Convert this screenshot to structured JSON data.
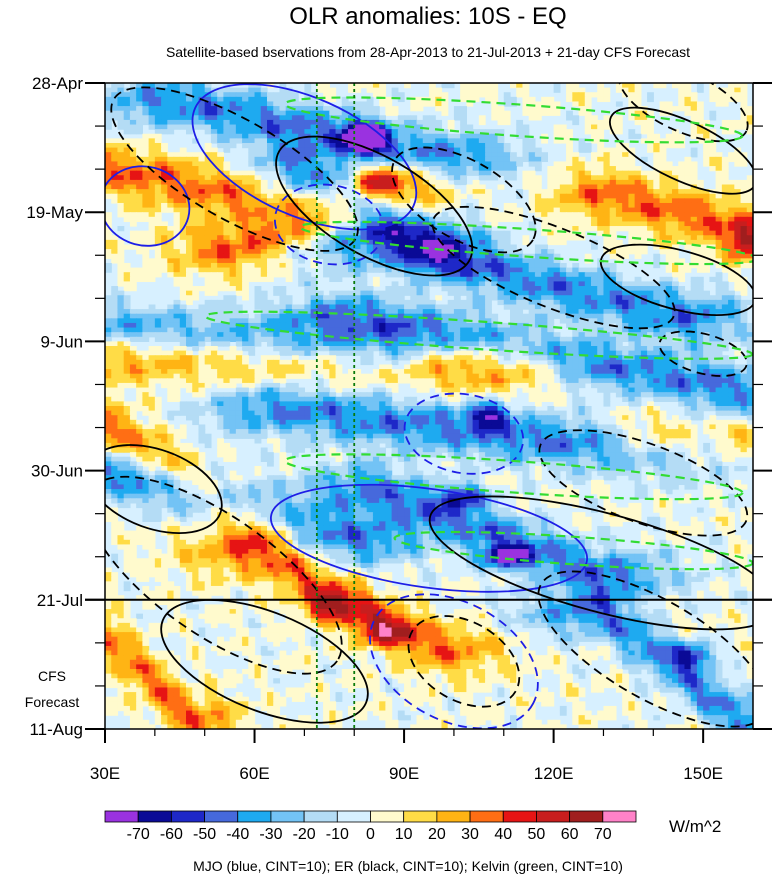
{
  "chart_data": {
    "type": "heatmap",
    "title": "OLR anomalies: 10S - EQ",
    "subtitle": "Satellite-based bservations from 28-Apr-2013 to 21-Jul-2013 + 21-day CFS Forecast",
    "y_tick_labels": [
      "28-Apr",
      "19-May",
      "9-Jun",
      "30-Jun",
      "21-Jul",
      "11-Aug"
    ],
    "y_tick_day_offsets": [
      0,
      21,
      42,
      63,
      84,
      105
    ],
    "ylim_days": [
      0,
      105
    ],
    "x_tick_labels": [
      "30E",
      "60E",
      "90E",
      "120E",
      "150E"
    ],
    "x_tick_values": [
      30,
      60,
      90,
      120,
      150
    ],
    "xlim": [
      30,
      160
    ],
    "forecast_start_day": 84,
    "forecast_label_line1": "CFS",
    "forecast_label_line2": "Forecast",
    "reference_longitudes": [
      72.5,
      80
    ],
    "colorbar": {
      "levels": [
        -70,
        -60,
        -50,
        -40,
        -30,
        -20,
        -10,
        0,
        10,
        20,
        30,
        40,
        50,
        60,
        70
      ],
      "level_labels": [
        "-70",
        "-60",
        "-50",
        "-40",
        "-30",
        "-20",
        "-10",
        "0",
        "10",
        "20",
        "30",
        "40",
        "50",
        "60",
        "70"
      ],
      "colors": [
        "#9a32e0",
        "#0a0a96",
        "#1e28c8",
        "#4669dc",
        "#1eaaf0",
        "#73c3f5",
        "#b4dcf5",
        "#d7f0ff",
        "#fffacd",
        "#ffdc46",
        "#ffb414",
        "#ff6e14",
        "#e61414",
        "#c81e1e",
        "#a01e1e",
        "#ff82c8"
      ],
      "units": "W/m^2"
    },
    "bands": [
      {
        "sign": "neg",
        "lon0": 44,
        "lon1": 98,
        "d0": 3,
        "d1": 12,
        "s": 16
      },
      {
        "sign": "neg",
        "lon0": 70,
        "lon1": 95,
        "d0": 14,
        "d1": 26,
        "s": 11
      },
      {
        "sign": "neg",
        "lon0": 84,
        "lon1": 146,
        "d0": 26,
        "d1": 38,
        "s": 14
      },
      {
        "sign": "neg",
        "lon0": 30,
        "lon1": 86,
        "d0": 40,
        "d1": 44,
        "s": 9
      },
      {
        "sign": "neg",
        "lon0": 80,
        "lon1": 158,
        "d0": 38,
        "d1": 50,
        "s": 15
      },
      {
        "sign": "neg",
        "lon0": 66,
        "lon1": 160,
        "d0": 53,
        "d1": 62,
        "s": 16
      },
      {
        "sign": "neg",
        "lon0": 36,
        "lon1": 80,
        "d0": 64,
        "d1": 74,
        "s": 15
      },
      {
        "sign": "neg",
        "lon0": 85,
        "lon1": 130,
        "d0": 66,
        "d1": 80,
        "s": 15
      },
      {
        "sign": "neg",
        "lon0": 130,
        "lon1": 160,
        "d0": 86,
        "d1": 105,
        "s": 17
      },
      {
        "sign": "pos",
        "lon0": 30,
        "lon1": 56,
        "d0": 14,
        "d1": 18,
        "s": 11
      },
      {
        "sign": "pos",
        "lon0": 56,
        "lon1": 88,
        "d0": 27,
        "d1": 17,
        "s": 13
      },
      {
        "sign": "pos",
        "lon0": 30,
        "lon1": 112,
        "d0": 44,
        "d1": 46,
        "s": 10
      },
      {
        "sign": "pos",
        "lon0": 30,
        "lon1": 60,
        "d0": 55,
        "d1": 72,
        "s": 10
      },
      {
        "sign": "pos",
        "lon0": 60,
        "lon1": 96,
        "d0": 76,
        "d1": 92,
        "s": 14
      },
      {
        "sign": "pos",
        "lon0": 130,
        "lon1": 160,
        "d0": 18,
        "d1": 24,
        "s": 10
      },
      {
        "sign": "pos",
        "lon0": 140,
        "lon1": 160,
        "d0": 58,
        "d1": 62,
        "s": 9
      },
      {
        "sign": "pos",
        "lon0": 30,
        "lon1": 48,
        "d0": 90,
        "d1": 104,
        "s": 9
      }
    ],
    "blobs": [
      {
        "lon": 82,
        "day": 9,
        "rlon": 4,
        "rday": 2.5,
        "v": -90
      },
      {
        "lon": 84,
        "day": 16,
        "rlon": 5,
        "rday": 2.5,
        "v": 40
      },
      {
        "lon": 107,
        "day": 54,
        "rlon": 4,
        "rday": 2,
        "v": -50
      },
      {
        "lon": 102,
        "day": 67,
        "rlon": 4,
        "rday": 2,
        "v": -50
      },
      {
        "lon": 110,
        "day": 77,
        "rlon": 5,
        "rday": 2,
        "v": -55
      },
      {
        "lon": 75,
        "day": 85,
        "rlon": 5,
        "rday": 2.5,
        "v": 45
      },
      {
        "lon": 86,
        "day": 89,
        "rlon": 6,
        "rday": 2.5,
        "v": 40
      },
      {
        "lon": 148,
        "day": 93,
        "rlon": 4,
        "rday": 2,
        "v": -50
      },
      {
        "lon": 158,
        "day": 26,
        "rlon": 3,
        "rday": 3,
        "v": 40
      },
      {
        "lon": 158,
        "day": 57,
        "rlon": 3,
        "rday": 2,
        "v": 35
      }
    ],
    "overlays": [
      {
        "wave": "MJO",
        "color": "#1e1ee6",
        "sign": "neg",
        "lon": 70,
        "day": 12,
        "a": 24,
        "b": 6,
        "rot": 24
      },
      {
        "wave": "MJO",
        "color": "#1e1ee6",
        "sign": "neg",
        "lon": 38,
        "day": 20,
        "a": 9,
        "b": 4,
        "rot": 15
      },
      {
        "wave": "MJO",
        "color": "#1e1ee6",
        "sign": "pos",
        "lon": 75,
        "day": 23,
        "a": 11,
        "b": 4,
        "rot": 10
      },
      {
        "wave": "MJO",
        "color": "#1e1ee6",
        "sign": "pos",
        "lon": 102,
        "day": 57,
        "a": 12,
        "b": 4,
        "rot": 10
      },
      {
        "wave": "MJO",
        "color": "#1e1ee6",
        "sign": "neg",
        "lon": 95,
        "day": 74,
        "a": 32,
        "b": 5,
        "rot": 8
      },
      {
        "wave": "MJO",
        "color": "#1e1ee6",
        "sign": "pos",
        "lon": 100,
        "day": 94,
        "a": 18,
        "b": 6,
        "rot": 28
      },
      {
        "wave": "ER",
        "color": "#000000",
        "sign": "pos",
        "lon": 56,
        "day": 14,
        "a": 28,
        "b": 5,
        "rot": 30
      },
      {
        "wave": "ER",
        "color": "#000000",
        "sign": "pos",
        "lon": 102,
        "day": 19,
        "a": 16,
        "b": 4,
        "rot": 30
      },
      {
        "wave": "ER",
        "color": "#000000",
        "sign": "neg",
        "lon": 84,
        "day": 20,
        "a": 22,
        "b": 5,
        "rot": 30
      },
      {
        "wave": "ER",
        "color": "#000000",
        "sign": "pos",
        "lon": 146,
        "day": 3,
        "a": 14,
        "b": 3,
        "rot": 25
      },
      {
        "wave": "ER",
        "color": "#000000",
        "sign": "neg",
        "lon": 146,
        "day": 11,
        "a": 16,
        "b": 3,
        "rot": 25
      },
      {
        "wave": "ER",
        "color": "#000000",
        "sign": "pos",
        "lon": 120,
        "day": 30,
        "a": 26,
        "b": 4,
        "rot": 22
      },
      {
        "wave": "ER",
        "color": "#000000",
        "sign": "neg",
        "lon": 145,
        "day": 32,
        "a": 16,
        "b": 3,
        "rot": 15
      },
      {
        "wave": "ER",
        "color": "#000000",
        "sign": "pos",
        "lon": 150,
        "day": 44,
        "a": 9,
        "b": 2,
        "rot": 15
      },
      {
        "wave": "ER",
        "color": "#000000",
        "sign": "neg",
        "lon": 40,
        "day": 66,
        "a": 14,
        "b": 4,
        "rot": 20
      },
      {
        "wave": "ER",
        "color": "#000000",
        "sign": "pos",
        "lon": 138,
        "day": 65,
        "a": 22,
        "b": 4,
        "rot": 20
      },
      {
        "wave": "ER",
        "color": "#000000",
        "sign": "pos",
        "lon": 52,
        "day": 80,
        "a": 30,
        "b": 6,
        "rot": 35
      },
      {
        "wave": "ER",
        "color": "#000000",
        "sign": "neg",
        "lon": 130,
        "day": 78,
        "a": 36,
        "b": 5,
        "rot": 15
      },
      {
        "wave": "ER",
        "color": "#000000",
        "sign": "neg",
        "lon": 62,
        "day": 94,
        "a": 22,
        "b": 5,
        "rot": 22
      },
      {
        "wave": "ER",
        "color": "#000000",
        "sign": "pos",
        "lon": 102,
        "day": 94,
        "a": 12,
        "b": 4,
        "rot": 30
      },
      {
        "wave": "ER",
        "color": "#000000",
        "sign": "pos",
        "lon": 140,
        "day": 92,
        "a": 26,
        "b": 5,
        "rot": 30
      },
      {
        "wave": "Kelvin",
        "color": "#32dc32",
        "sign": "pos",
        "lon": 112,
        "day": 6,
        "a": 46,
        "b": 1.6,
        "rot": 4
      },
      {
        "wave": "Kelvin",
        "color": "#32dc32",
        "sign": "pos",
        "lon": 115,
        "day": 26,
        "a": 46,
        "b": 1.4,
        "rot": 4
      },
      {
        "wave": "Kelvin",
        "color": "#32dc32",
        "sign": "pos",
        "lon": 105,
        "day": 41,
        "a": 55,
        "b": 1.4,
        "rot": 4
      },
      {
        "wave": "Kelvin",
        "color": "#32dc32",
        "sign": "pos",
        "lon": 112,
        "day": 64,
        "a": 46,
        "b": 1.6,
        "rot": 4
      },
      {
        "wave": "Kelvin",
        "color": "#32dc32",
        "sign": "pos",
        "lon": 124,
        "day": 76,
        "a": 36,
        "b": 1.4,
        "rot": 4
      }
    ],
    "legend_text": "MJO (blue, CINT=10); ER (black, CINT=10); Kelvin (green, CINT=10)"
  }
}
